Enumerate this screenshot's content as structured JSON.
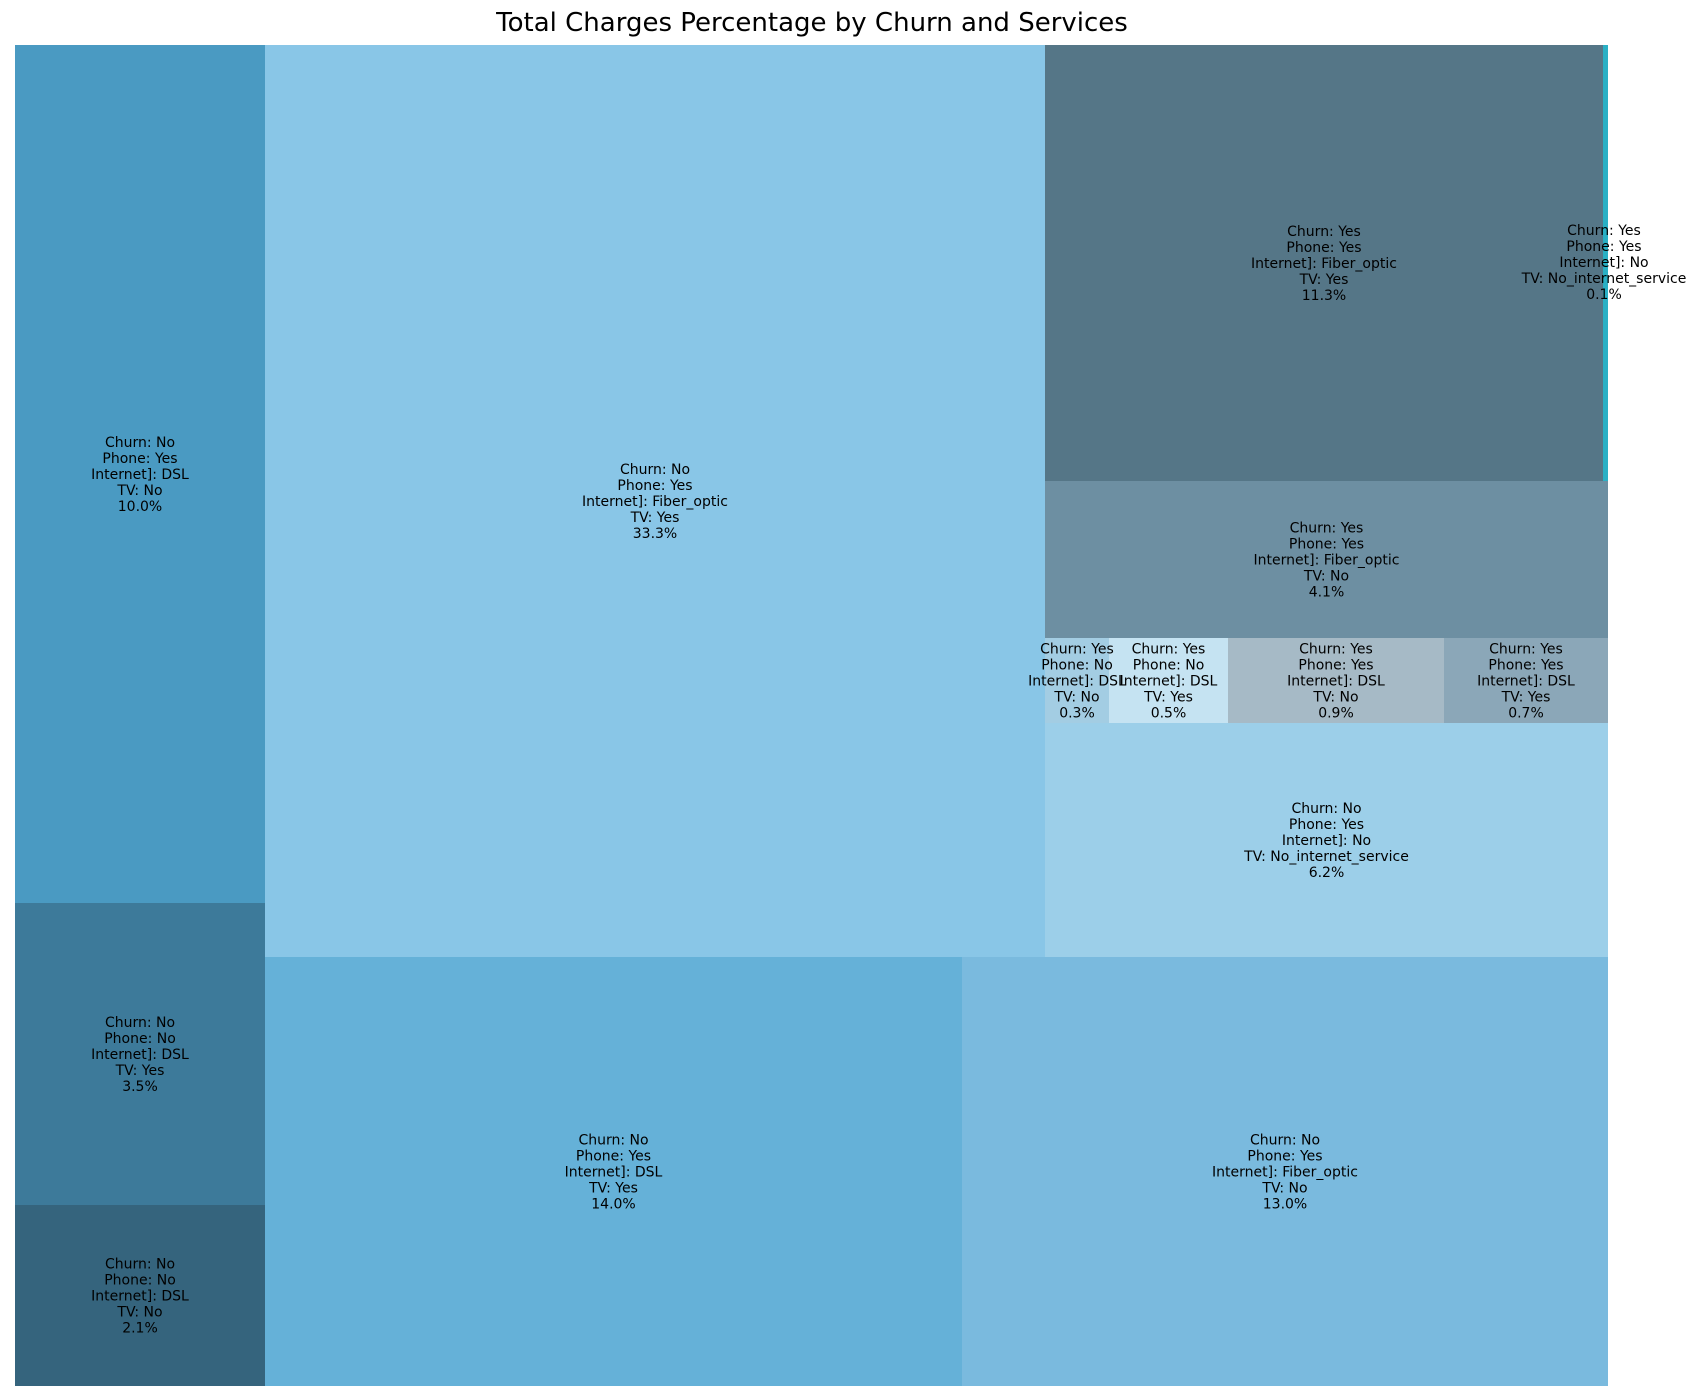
{
  "chart_data": {
    "type": "treemap",
    "title": "Total Charges Percentage by Churn and Services",
    "value_format": "percent",
    "tiles": [
      {
        "churn": "No",
        "phone": "Yes",
        "internet": "DSL",
        "tv": "No",
        "value": 10.0,
        "color": "#4a9ac2"
      },
      {
        "churn": "No",
        "phone": "No",
        "internet": "DSL",
        "tv": "Yes",
        "value": 3.5,
        "color": "#3d7a9a"
      },
      {
        "churn": "No",
        "phone": "No",
        "internet": "DSL",
        "tv": "No",
        "value": 2.1,
        "color": "#35647d"
      },
      {
        "churn": "No",
        "phone": "Yes",
        "internet": "Fiber_optic",
        "tv": "Yes",
        "value": 33.3,
        "color": "#89c6e7"
      },
      {
        "churn": "No",
        "phone": "Yes",
        "internet": "DSL",
        "tv": "Yes",
        "value": 14.0,
        "color": "#65b1d8"
      },
      {
        "churn": "No",
        "phone": "Yes",
        "internet": "Fiber_optic",
        "tv": "No",
        "value": 13.0,
        "color": "#7abade"
      },
      {
        "churn": "Yes",
        "phone": "Yes",
        "internet": "Fiber_optic",
        "tv": "Yes",
        "value": 11.3,
        "color": "#557687"
      },
      {
        "churn": "Yes",
        "phone": "Yes",
        "internet": "No",
        "tv": "No_internet_service",
        "value": 0.1,
        "color": "#2ab0c5"
      },
      {
        "churn": "Yes",
        "phone": "Yes",
        "internet": "Fiber_optic",
        "tv": "No",
        "value": 4.1,
        "color": "#6d8fa2"
      },
      {
        "churn": "Yes",
        "phone": "No",
        "internet": "DSL",
        "tv": "No",
        "value": 0.3,
        "color": "#a3cde3"
      },
      {
        "churn": "Yes",
        "phone": "No",
        "internet": "DSL",
        "tv": "Yes",
        "value": 0.5,
        "color": "#c5e3f2"
      },
      {
        "churn": "Yes",
        "phone": "Yes",
        "internet": "DSL",
        "tv": "No",
        "value": 0.9,
        "color": "#a6bac6"
      },
      {
        "churn": "Yes",
        "phone": "Yes",
        "internet": "DSL",
        "tv": "Yes",
        "value": 0.7,
        "color": "#8ba7b8"
      },
      {
        "churn": "No",
        "phone": "Yes",
        "internet": "No",
        "tv": "No_internet_service",
        "value": 6.2,
        "color": "#9ccfe9"
      }
    ],
    "label_prefixes": {
      "churn": "Churn: ",
      "phone": "Phone: ",
      "internet": "Internet]: ",
      "tv": "TV: "
    }
  }
}
